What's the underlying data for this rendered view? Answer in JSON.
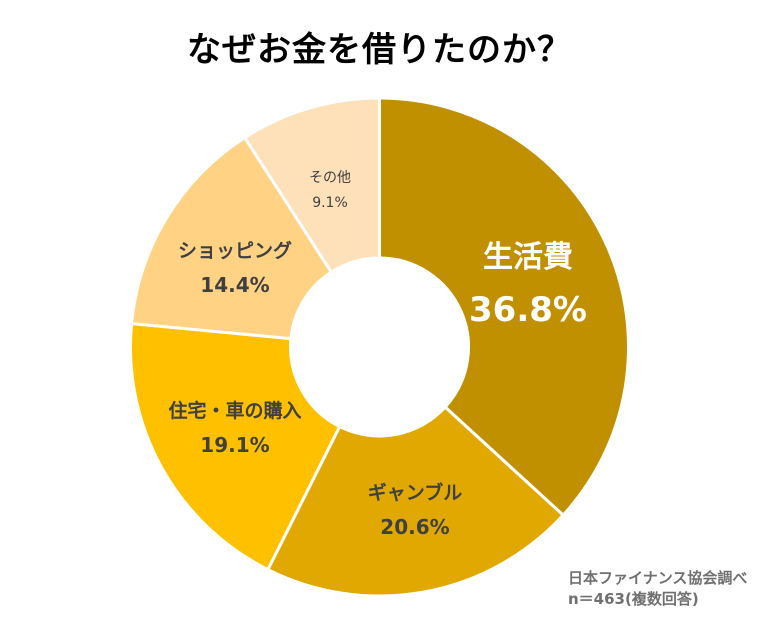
{
  "chart_data": {
    "type": "pie",
    "subtype": "donut",
    "title": "なぜお金を借りたのか？",
    "categories": [
      "生活費",
      "ギャンブル",
      "住宅・車の購入",
      "ショッピング",
      "その他"
    ],
    "values": [
      36.8,
      20.6,
      19.1,
      14.4,
      9.1
    ],
    "labels": [
      "36.8%",
      "20.6%",
      "19.1%",
      "14.4%",
      "9.1%"
    ],
    "colors": [
      "#C09000",
      "#E0A800",
      "#FFC000",
      "#FFD284",
      "#FFE1B9"
    ],
    "unit": "%",
    "start_angle": "12 o'clock, clockwise",
    "legend": "none (labels inside slices)",
    "annotations": [
      "日本ファイナンス協会調べ",
      "n＝463(複数回答)"
    ]
  },
  "title": "なぜお金を借りたのか？",
  "slices": [
    {
      "name": "生活費",
      "pct": "36.8%"
    },
    {
      "name": "ギャンブル",
      "pct": "20.6%"
    },
    {
      "name": "住宅・車の購入",
      "pct": "19.1%"
    },
    {
      "name": "ショッピング",
      "pct": "14.4%"
    },
    {
      "name": "その他",
      "pct": "9.1%"
    }
  ],
  "source": {
    "line1": "日本ファイナンス協会調べ",
    "line2": "n＝463(複数回答)"
  }
}
